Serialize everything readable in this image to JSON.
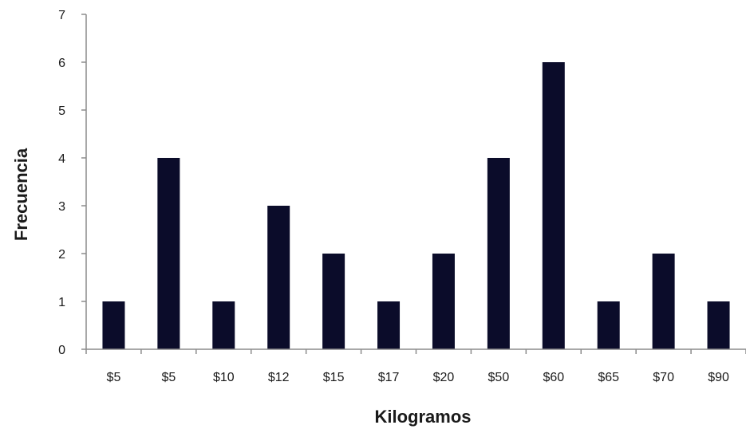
{
  "chart_data": {
    "type": "bar",
    "title": "",
    "xlabel": "Kilogramos",
    "ylabel": "Frecuencia",
    "categories": [
      "$5",
      "$5",
      "$10",
      "$12",
      "$15",
      "$17",
      "$20",
      "$50",
      "$60",
      "$65",
      "$70",
      "$90"
    ],
    "values": [
      1,
      4,
      1,
      3,
      2,
      1,
      2,
      4,
      6,
      1,
      2,
      1
    ],
    "ylim": [
      0,
      7
    ],
    "yticks": [
      "0",
      "1",
      "2",
      "3",
      "4",
      "5",
      "6",
      "7"
    ],
    "grid": false,
    "bar_color": "#0b0c2a"
  }
}
